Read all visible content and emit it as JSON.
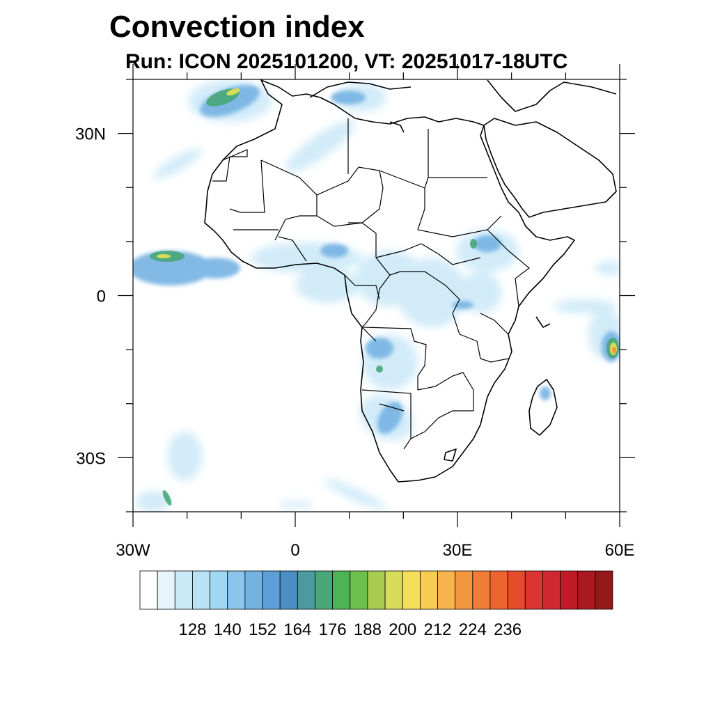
{
  "title": "Convection index",
  "subtitle": "Run: ICON 2025101200,  VT: 20251017-18UTC",
  "axes": {
    "lon_ticks": [
      {
        "value": -30,
        "label": "30W"
      },
      {
        "value": 0,
        "label": "0"
      },
      {
        "value": 30,
        "label": "30E"
      },
      {
        "value": 60,
        "label": "60E"
      }
    ],
    "lat_ticks": [
      {
        "value": 30,
        "label": "30N"
      },
      {
        "value": 0,
        "label": "0"
      },
      {
        "value": -30,
        "label": "30S"
      }
    ],
    "lon_range": [
      -30,
      60
    ],
    "lat_range": [
      -40,
      40
    ]
  },
  "colorbar": {
    "colors": [
      "#ffffff",
      "#e6f4fc",
      "#cce9f8",
      "#b8e2f6",
      "#a0d8f4",
      "#8ac6ec",
      "#74b2e2",
      "#5c9ed6",
      "#4a8ec4",
      "#4c9aa0",
      "#48a878",
      "#4cb454",
      "#6ec04c",
      "#a8cc50",
      "#d8dc58",
      "#f4e058",
      "#f8cc50",
      "#f8b44c",
      "#f49840",
      "#f07c38",
      "#ec6430",
      "#e44c2c",
      "#dc3430",
      "#d02830",
      "#c01c28",
      "#ac1820",
      "#941818"
    ],
    "labels": [
      "128",
      "140",
      "152",
      "164",
      "176",
      "188",
      "200",
      "212",
      "224",
      "236"
    ]
  },
  "chart_data": {
    "type": "heatmap",
    "title": "Convection index",
    "subtitle": "Run: ICON 2025101200,  VT: 20251017-18UTC",
    "x_axis": "longitude",
    "y_axis": "latitude",
    "xlim": [
      -30,
      60
    ],
    "ylim": [
      -40,
      40
    ],
    "colorbar_levels": [
      128,
      140,
      152,
      164,
      176,
      188,
      200,
      212,
      224,
      236
    ]
  }
}
